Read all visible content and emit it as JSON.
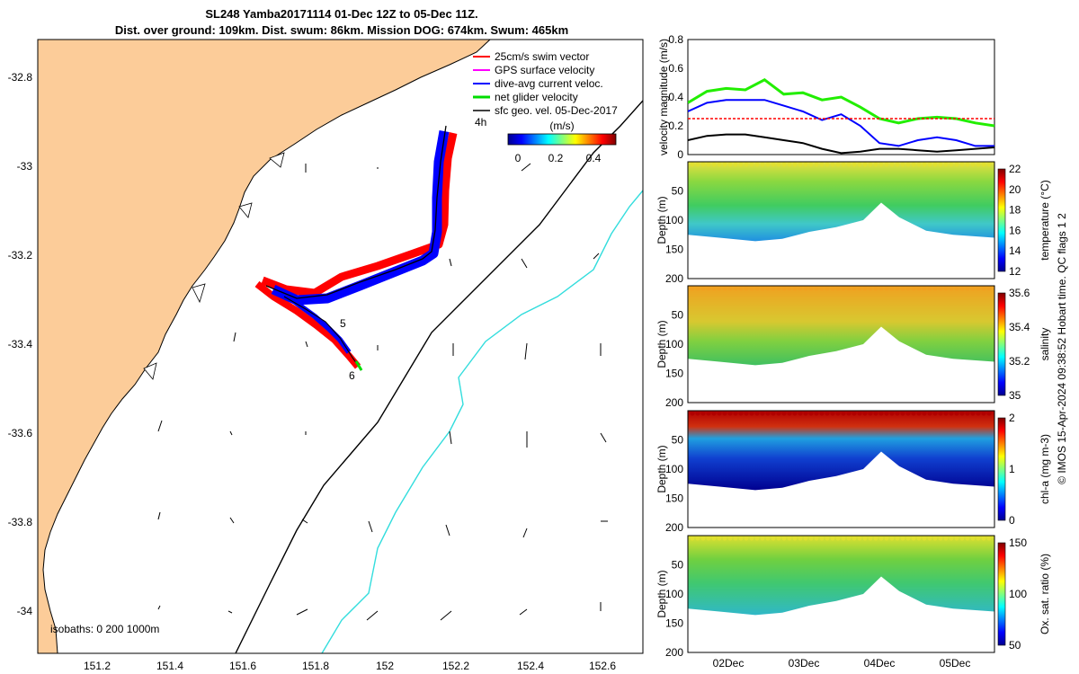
{
  "map": {
    "title_line1": "SL248 Yamba20171114 01-Dec 12Z to 05-Dec 11Z.",
    "title_line2": "Dist. over ground: 109km. Dist. swum: 86km. Mission DOG: 674km. Swum: 465km",
    "x_ticks": [
      "151.2",
      "151.4",
      "151.6",
      "151.8",
      "152",
      "152.2",
      "152.4",
      "152.6"
    ],
    "y_ticks": [
      "-32.8",
      "-33",
      "-33.2",
      "-33.4",
      "-33.6",
      "-33.8",
      "-34"
    ],
    "legend": [
      {
        "label": "25cm/s swim vector",
        "color": "#ff0000"
      },
      {
        "label": "GPS surface velocity",
        "color": "#ff00ff"
      },
      {
        "label": "dive-avg current veloc.",
        "color": "#0000ff"
      },
      {
        "label": "net glider velocity",
        "color": "#00dd00"
      },
      {
        "label": "sfc geo. vel. 05-Dec-2017",
        "color": "#000000"
      }
    ],
    "time_tag": "4h",
    "colorbar_label": "(m/s)",
    "colorbar_ticks": [
      "0",
      "0.2",
      "0.4"
    ],
    "isobaths_label": "isobaths: 0   200  1000m",
    "track_labels": [
      "5",
      "6"
    ],
    "colors": {
      "land": "#fccc99",
      "isobath_200": "#000000",
      "isobath_1000": "#33dddd"
    }
  },
  "velocity_panel": {
    "ylabel": "velocity magnitude (m/s)",
    "y_ticks": [
      "0",
      "0.2",
      "0.4",
      "0.6",
      "0.8"
    ]
  },
  "sections": [
    {
      "name": "temperature",
      "cbar_label": "temperature (°C)",
      "cbar_ticks": [
        "12",
        "14",
        "16",
        "18",
        "20",
        "22"
      ],
      "ylabel": "Depth (m)",
      "y_ticks": [
        "50",
        "100",
        "150",
        "200"
      ]
    },
    {
      "name": "salinity",
      "cbar_label": "salinity",
      "cbar_ticks": [
        "35",
        "35.2",
        "35.4",
        "35.6"
      ],
      "ylabel": "Depth (m)",
      "y_ticks": [
        "50",
        "100",
        "150",
        "200"
      ]
    },
    {
      "name": "chla",
      "cbar_label": "chl-a (mg m-3)",
      "cbar_ticks": [
        "0",
        "1",
        "2"
      ],
      "ylabel": "Depth (m)",
      "y_ticks": [
        "50",
        "100",
        "150",
        "200"
      ]
    },
    {
      "name": "oxygen",
      "cbar_label": "Ox. sat. ratio (%)",
      "cbar_ticks": [
        "50",
        "100",
        "150"
      ],
      "ylabel": "Depth (m)",
      "y_ticks": [
        "50",
        "100",
        "150",
        "200"
      ]
    }
  ],
  "x_dates": [
    "02Dec",
    "03Dec",
    "04Dec",
    "05Dec"
  ],
  "credit": "© IMOS 15-Apr-2024 09:38:52 Hobart time. QC flags 1  2",
  "chart_data": [
    {
      "type": "scatter",
      "title": "SL248 Yamba20171114 01-Dec 12Z to 05-Dec 11Z.",
      "xlim": [
        151.08,
        152.72
      ],
      "ylim": [
        -34.08,
        -32.72
      ],
      "glider_track": {
        "x": [
          151.66,
          151.72,
          151.8,
          151.88,
          151.96,
          152.05,
          152.12,
          152.16,
          152.18,
          152.2
        ],
        "y": [
          -33.26,
          -33.28,
          -33.29,
          -33.26,
          -33.23,
          -33.21,
          -33.19,
          -33.1,
          -33.0,
          -32.91
        ]
      },
      "glider_track_return": {
        "x": [
          151.7,
          151.76,
          151.82,
          151.87,
          151.91,
          151.94
        ],
        "y": [
          -33.28,
          -33.3,
          -33.33,
          -33.37,
          -33.41,
          -33.45
        ]
      }
    },
    {
      "type": "line",
      "ylabel": "velocity magnitude (m/s)",
      "ylim": [
        0,
        0.8
      ],
      "x_days": [
        0.0,
        0.25,
        0.5,
        0.75,
        1.0,
        1.25,
        1.5,
        1.75,
        2.0,
        2.25,
        2.5,
        2.75,
        3.0,
        3.25,
        3.5,
        3.75,
        4.0
      ],
      "series": [
        {
          "label": "net glider velocity",
          "values": [
            0.36,
            0.44,
            0.46,
            0.45,
            0.52,
            0.42,
            0.43,
            0.38,
            0.4,
            0.33,
            0.25,
            0.22,
            0.25,
            0.26,
            0.25,
            0.22,
            0.2
          ]
        },
        {
          "label": "dive-avg current veloc.",
          "values": [
            0.3,
            0.36,
            0.38,
            0.38,
            0.38,
            0.34,
            0.3,
            0.24,
            0.28,
            0.2,
            0.08,
            0.06,
            0.1,
            0.12,
            0.1,
            0.06,
            0.06
          ]
        },
        {
          "label": "25cm/s swim vector",
          "values": [
            0.25,
            0.25,
            0.25,
            0.25,
            0.25,
            0.25,
            0.25,
            0.25,
            0.25,
            0.25,
            0.25,
            0.25,
            0.25,
            0.25,
            0.25,
            0.25,
            0.25
          ]
        },
        {
          "label": "sfc geo. vel. 05-Dec-2017",
          "values": [
            0.1,
            0.13,
            0.14,
            0.14,
            0.12,
            0.1,
            0.08,
            0.04,
            0.01,
            0.02,
            0.04,
            0.04,
            0.03,
            0.02,
            0.03,
            0.04,
            0.05
          ]
        }
      ]
    }
  ]
}
